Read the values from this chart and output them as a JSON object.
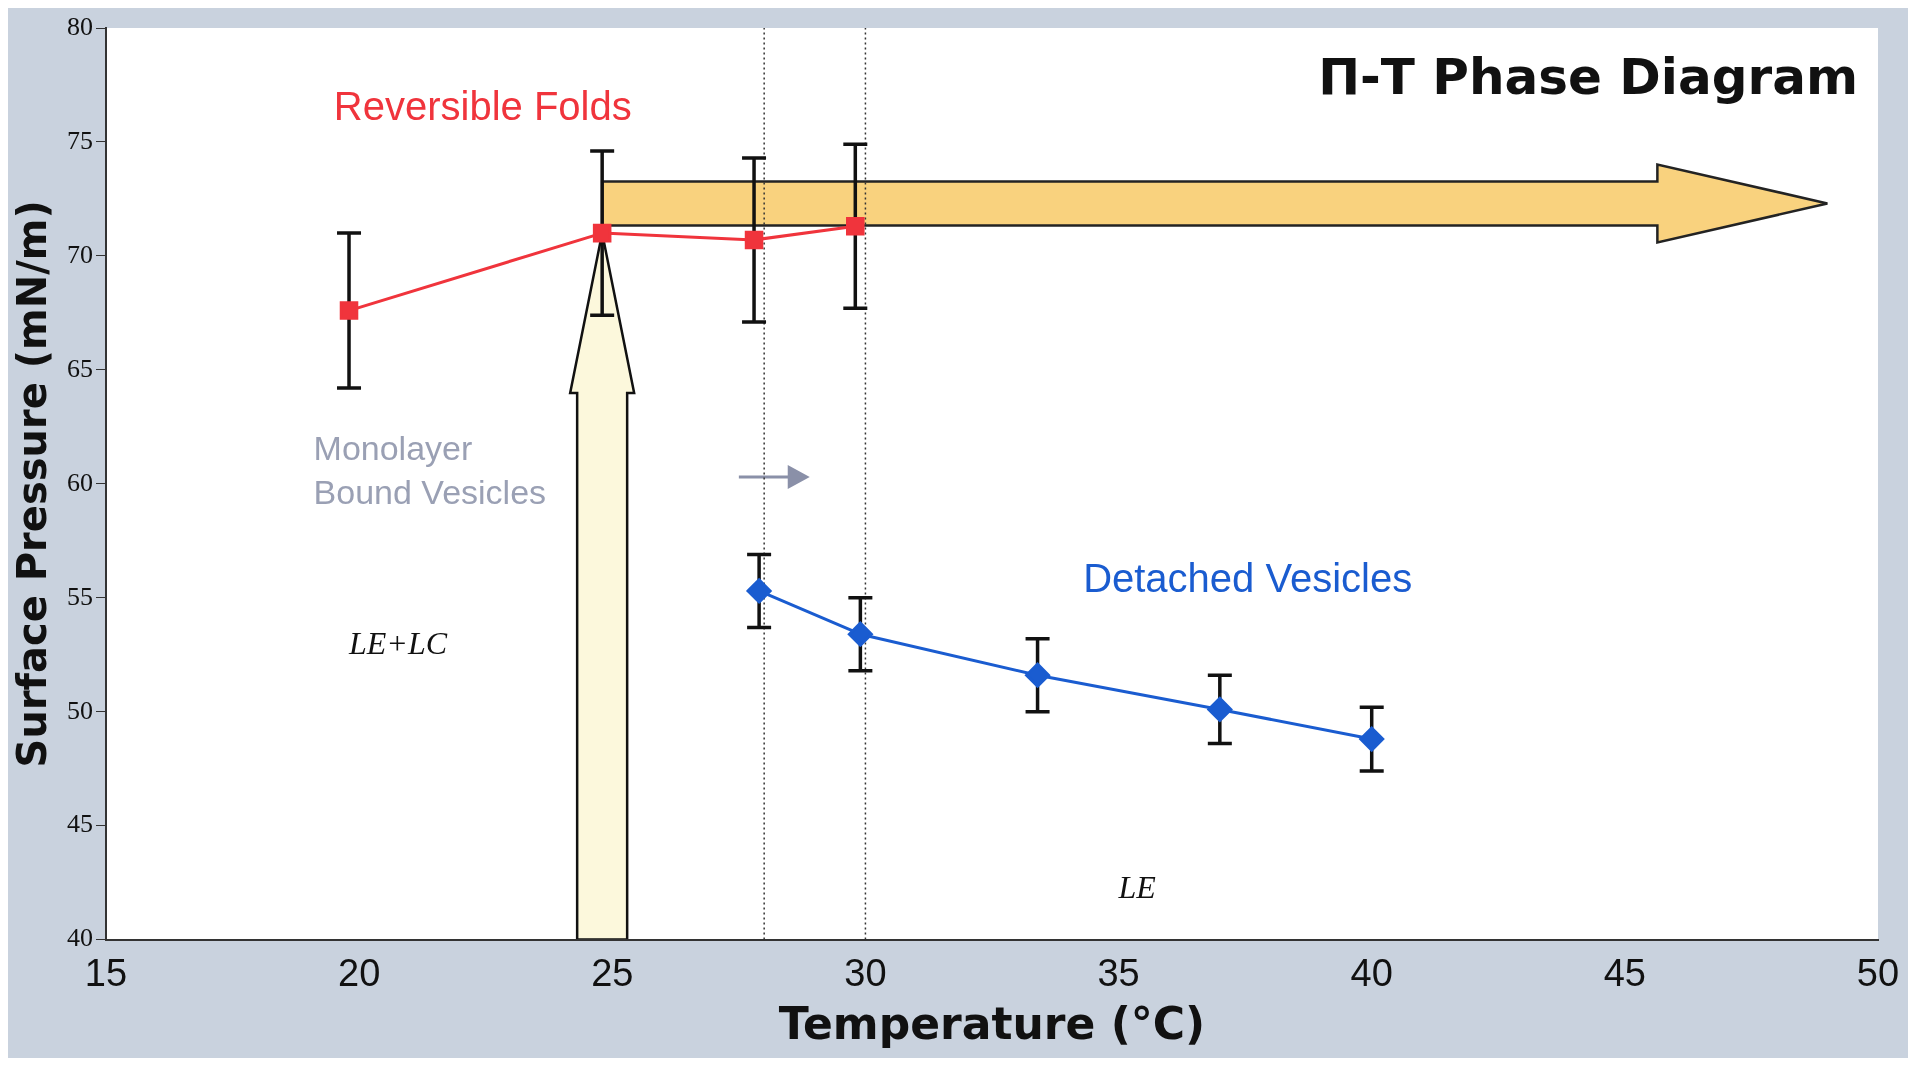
{
  "chart_data": {
    "type": "line",
    "title": "Π-T Phase Diagram",
    "xlabel": "Temperature (°C)",
    "ylabel": "Surface Pressure (mN/m)",
    "xlim": [
      15,
      50
    ],
    "xticks": [
      15,
      20,
      25,
      30,
      35,
      40,
      45,
      50
    ],
    "ylim": [
      40,
      80
    ],
    "yticks": [
      40,
      45,
      50,
      55,
      60,
      65,
      70,
      75,
      80
    ],
    "grid": false,
    "legend": false,
    "series": [
      {
        "name": "Reversible Folds",
        "color": "#f0343c",
        "marker": "square",
        "x": [
          19.8,
          24.8,
          27.8,
          29.8
        ],
        "values": [
          67.6,
          71.0,
          70.7,
          71.3
        ],
        "errors": [
          3.4,
          3.6,
          3.6,
          3.6
        ]
      },
      {
        "name": "Detached Vesicles",
        "color": "#1a5cd0",
        "marker": "diamond",
        "x": [
          27.9,
          29.9,
          33.4,
          37.0,
          40.0
        ],
        "values": [
          55.3,
          53.4,
          51.6,
          50.1,
          48.8
        ],
        "errors": [
          1.6,
          1.6,
          1.6,
          1.5,
          1.4
        ]
      }
    ],
    "ref_lines": [
      {
        "axis": "x",
        "value": 28,
        "line_style": "dotted",
        "color": "#333333"
      },
      {
        "axis": "x",
        "value": 30,
        "line_style": "dotted",
        "color": "#333333"
      }
    ],
    "annotations": [
      "LE+LC",
      "LE",
      "Monolayer Bound Vesicles"
    ]
  }
}
